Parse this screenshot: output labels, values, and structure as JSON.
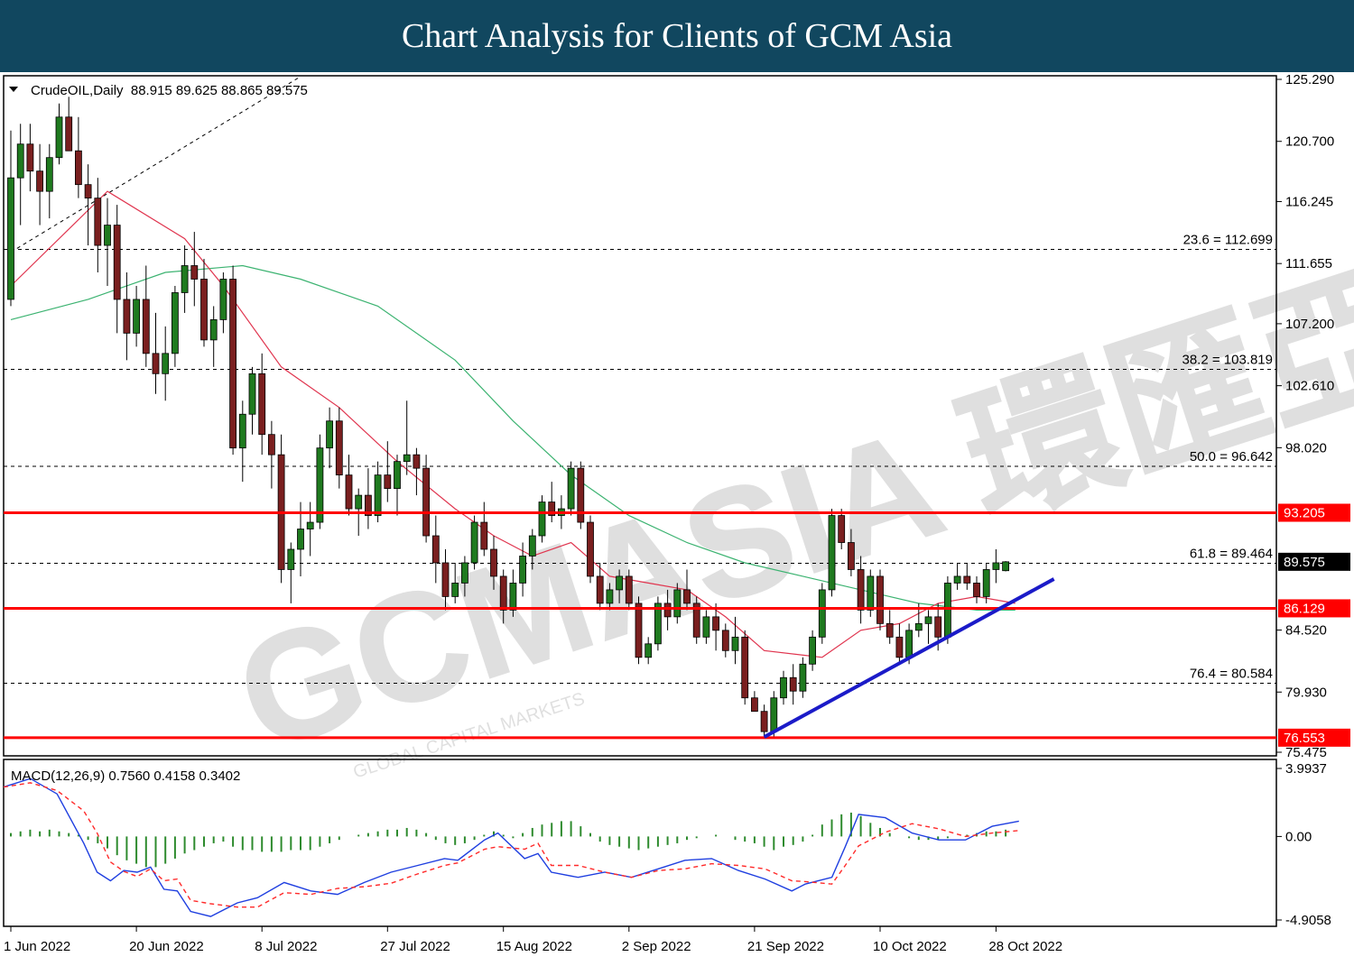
{
  "page_title": "Chart Analysis for Clients of GCM Asia",
  "watermark": "GCMASIA 環匯亞洲",
  "watermark_sub": "GLOBAL CAPITAL MARKETS",
  "chart_data": [
    {
      "type": "candlestick",
      "header": "CrudeOIL,Daily  88.915 89.625 88.865 89.575",
      "symbol": "CrudeOIL",
      "timeframe": "Daily",
      "ohlc_label": "88.915 89.625 88.865 89.575",
      "ylim": [
        75.475,
        125.29
      ],
      "price_ticks": [
        "125.290",
        "120.700",
        "116.245",
        "111.655",
        "107.200",
        "102.610",
        "98.020",
        "84.520",
        "79.930",
        "75.475"
      ],
      "date_labels": [
        "1 Jun 2022",
        "20 Jun 2022",
        "8 Jul 2022",
        "27 Jul 2022",
        "15 Aug 2022",
        "2 Sep 2022",
        "21 Sep 2022",
        "10 Oct 2022",
        "28 Oct 2022"
      ],
      "fibonacci": [
        {
          "label": "23.6 = 112.699",
          "price": 112.699
        },
        {
          "label": "38.2 = 103.819",
          "price": 103.819
        },
        {
          "label": "50.0 = 96.642",
          "price": 96.642
        },
        {
          "label": "61.8 = 89.464",
          "price": 89.464
        },
        {
          "label": "76.4 = 80.584",
          "price": 80.584
        }
      ],
      "sr_levels": [
        {
          "label": "93.205",
          "price": 93.205
        },
        {
          "label": "86.129",
          "price": 86.129
        },
        {
          "label": "76.553",
          "price": 76.553
        }
      ],
      "current_price": {
        "label": "89.575",
        "price": 89.575
      },
      "candles": [
        [
          109.0,
          121.5,
          108.5,
          118.0
        ],
        [
          118.0,
          122.0,
          114.5,
          120.5
        ],
        [
          120.5,
          122.0,
          117.0,
          118.5
        ],
        [
          118.5,
          120.5,
          114.5,
          117.0
        ],
        [
          117.0,
          120.5,
          115.0,
          119.5
        ],
        [
          119.5,
          123.5,
          119.0,
          122.5
        ],
        [
          122.5,
          124.0,
          120.0,
          120.0
        ],
        [
          120.0,
          122.5,
          116.5,
          117.5
        ],
        [
          117.5,
          119.0,
          113.0,
          116.5
        ],
        [
          116.5,
          118.0,
          111.0,
          113.0
        ],
        [
          113.0,
          116.5,
          110.0,
          114.5
        ],
        [
          114.5,
          116.0,
          106.5,
          109.0
        ],
        [
          109.0,
          111.0,
          104.5,
          106.5
        ],
        [
          106.5,
          110.0,
          105.5,
          109.0
        ],
        [
          109.0,
          111.5,
          104.0,
          105.0
        ],
        [
          105.0,
          108.0,
          102.0,
          103.5
        ],
        [
          103.5,
          107.0,
          101.5,
          105.0
        ],
        [
          105.0,
          110.0,
          104.0,
          109.5
        ],
        [
          109.5,
          113.0,
          108.0,
          111.5
        ],
        [
          111.5,
          114.0,
          108.5,
          110.5
        ],
        [
          110.5,
          112.0,
          105.5,
          106.0
        ],
        [
          106.0,
          108.5,
          104.0,
          107.5
        ],
        [
          107.5,
          111.0,
          106.5,
          110.5
        ],
        [
          110.5,
          111.5,
          97.5,
          98.0
        ],
        [
          98.0,
          101.5,
          95.5,
          100.5
        ],
        [
          100.5,
          104.0,
          99.0,
          103.5
        ],
        [
          103.5,
          105.0,
          97.5,
          99.0
        ],
        [
          99.0,
          100.0,
          95.0,
          97.5
        ],
        [
          97.5,
          99.0,
          88.0,
          89.0
        ],
        [
          89.0,
          91.0,
          86.5,
          90.5
        ],
        [
          90.5,
          94.0,
          88.5,
          92.0
        ],
        [
          92.0,
          94.0,
          90.0,
          92.5
        ],
        [
          92.5,
          99.0,
          92.0,
          98.0
        ],
        [
          98.0,
          101.0,
          96.5,
          100.0
        ],
        [
          100.0,
          101.0,
          95.0,
          96.0
        ],
        [
          96.0,
          97.5,
          93.0,
          93.5
        ],
        [
          93.5,
          95.0,
          91.5,
          94.5
        ],
        [
          94.5,
          96.5,
          92.0,
          93.0
        ],
        [
          93.0,
          97.0,
          92.5,
          96.0
        ],
        [
          96.0,
          98.5,
          94.0,
          95.0
        ],
        [
          95.0,
          97.5,
          93.0,
          97.0
        ],
        [
          97.0,
          101.5,
          96.0,
          97.5
        ],
        [
          97.5,
          98.0,
          94.5,
          96.5
        ],
        [
          96.5,
          97.5,
          91.0,
          91.5
        ],
        [
          91.5,
          93.0,
          88.0,
          89.5
        ],
        [
          89.5,
          90.5,
          86.0,
          87.0
        ],
        [
          87.0,
          89.5,
          86.5,
          88.0
        ],
        [
          88.0,
          90.0,
          87.0,
          89.5
        ],
        [
          89.5,
          93.0,
          89.0,
          92.5
        ],
        [
          92.5,
          94.0,
          90.0,
          90.5
        ],
        [
          90.5,
          91.5,
          87.5,
          88.5
        ],
        [
          88.5,
          89.0,
          85.0,
          86.0
        ],
        [
          86.0,
          89.0,
          85.5,
          88.0
        ],
        [
          88.0,
          91.0,
          87.0,
          90.0
        ],
        [
          90.0,
          92.0,
          89.0,
          91.5
        ],
        [
          91.5,
          94.5,
          91.0,
          94.0
        ],
        [
          94.0,
          95.5,
          92.5,
          93.0
        ],
        [
          93.0,
          94.5,
          92.0,
          93.5
        ],
        [
          93.5,
          97.0,
          93.0,
          96.5
        ],
        [
          96.5,
          97.0,
          92.0,
          92.5
        ],
        [
          92.5,
          93.0,
          88.0,
          88.5
        ],
        [
          88.5,
          89.5,
          86.0,
          86.5
        ],
        [
          86.5,
          88.0,
          86.0,
          87.5
        ],
        [
          87.5,
          89.0,
          86.5,
          88.5
        ],
        [
          88.5,
          89.0,
          86.0,
          86.5
        ],
        [
          86.5,
          87.0,
          82.0,
          82.5
        ],
        [
          82.5,
          84.0,
          82.0,
          83.5
        ],
        [
          83.5,
          87.0,
          83.0,
          86.5
        ],
        [
          86.5,
          87.5,
          84.5,
          85.5
        ],
        [
          85.5,
          88.0,
          85.0,
          87.5
        ],
        [
          87.5,
          89.0,
          86.0,
          86.5
        ],
        [
          86.5,
          87.0,
          83.5,
          84.0
        ],
        [
          84.0,
          86.0,
          83.5,
          85.5
        ],
        [
          85.5,
          86.5,
          83.0,
          84.5
        ],
        [
          84.5,
          85.0,
          82.5,
          83.0
        ],
        [
          83.0,
          85.5,
          82.0,
          84.0
        ],
        [
          84.0,
          84.5,
          79.0,
          79.5
        ],
        [
          79.5,
          80.0,
          78.5,
          78.5
        ],
        [
          78.5,
          79.0,
          76.5,
          77.0
        ],
        [
          77.0,
          80.0,
          76.5,
          79.5
        ],
        [
          79.5,
          81.5,
          79.0,
          81.0
        ],
        [
          81.0,
          82.0,
          79.0,
          80.0
        ],
        [
          80.0,
          82.5,
          79.5,
          82.0
        ],
        [
          82.0,
          84.5,
          81.5,
          84.0
        ],
        [
          84.0,
          88.0,
          83.5,
          87.5
        ],
        [
          87.5,
          93.5,
          87.0,
          93.0
        ],
        [
          93.0,
          93.5,
          90.5,
          91.0
        ],
        [
          91.0,
          92.0,
          88.5,
          89.0
        ],
        [
          89.0,
          90.0,
          85.0,
          86.0
        ],
        [
          86.0,
          89.0,
          85.5,
          88.5
        ],
        [
          88.5,
          89.0,
          84.5,
          85.0
        ],
        [
          85.0,
          86.0,
          83.5,
          84.0
        ],
        [
          84.0,
          85.0,
          82.0,
          82.5
        ],
        [
          82.5,
          85.0,
          82.0,
          84.5
        ],
        [
          84.5,
          86.5,
          84.0,
          85.0
        ],
        [
          85.0,
          86.0,
          83.5,
          85.5
        ],
        [
          85.5,
          86.5,
          83.0,
          84.0
        ],
        [
          84.0,
          88.5,
          83.5,
          88.0
        ],
        [
          88.0,
          89.5,
          87.5,
          88.5
        ],
        [
          88.5,
          89.5,
          87.5,
          88.0
        ],
        [
          88.0,
          88.5,
          86.5,
          87.0
        ],
        [
          87.0,
          89.5,
          86.5,
          89.0
        ],
        [
          89.0,
          90.5,
          88.0,
          89.5
        ],
        [
          88.915,
          89.625,
          88.865,
          89.575
        ]
      ],
      "sma_red": [
        [
          0,
          110.0
        ],
        [
          10,
          117.0
        ],
        [
          18,
          113.5
        ],
        [
          22,
          110.0
        ],
        [
          28,
          104.0
        ],
        [
          34,
          101.0
        ],
        [
          40,
          97.0
        ],
        [
          46,
          93.5
        ],
        [
          50,
          91.5
        ],
        [
          54,
          90.0
        ],
        [
          58,
          91.0
        ],
        [
          62,
          88.5
        ],
        [
          66,
          88.0
        ],
        [
          70,
          87.5
        ],
        [
          74,
          85.5
        ],
        [
          78,
          83.0
        ],
        [
          84,
          82.5
        ],
        [
          88,
          84.5
        ],
        [
          92,
          85.0
        ],
        [
          96,
          86.5
        ],
        [
          100,
          87.0
        ],
        [
          104,
          86.5
        ]
      ],
      "sma_green": [
        [
          0,
          107.5
        ],
        [
          8,
          109.0
        ],
        [
          16,
          111.0
        ],
        [
          24,
          111.5
        ],
        [
          30,
          110.5
        ],
        [
          38,
          108.5
        ],
        [
          46,
          104.5
        ],
        [
          52,
          100.0
        ],
        [
          58,
          96.0
        ],
        [
          64,
          93.0
        ],
        [
          70,
          91.0
        ],
        [
          76,
          89.5
        ],
        [
          82,
          88.5
        ],
        [
          88,
          87.5
        ],
        [
          94,
          86.5
        ],
        [
          100,
          86.0
        ],
        [
          104,
          86.0
        ]
      ],
      "trendline": [
        [
          78,
          76.6
        ],
        [
          108,
          88.3
        ]
      ],
      "trendline_dashed": [
        [
          0,
          112.5
        ],
        [
          30,
          125.5
        ]
      ]
    },
    {
      "type": "macd",
      "header": "MACD(12,26,9) 0.7560 0.4158 0.3402",
      "ylim": [
        -4.9058,
        3.9937
      ],
      "ticks": [
        "3.9937",
        "0.00",
        "-4.9058"
      ],
      "histogram": [
        0.2,
        0.3,
        0.4,
        0.3,
        0.4,
        0.3,
        0.2,
        0.1,
        -0.2,
        -0.4,
        -0.7,
        -1.1,
        -1.4,
        -1.6,
        -1.8,
        -1.8,
        -1.6,
        -1.3,
        -1.0,
        -0.8,
        -0.6,
        -0.4,
        -0.3,
        -0.6,
        -0.8,
        -0.8,
        -0.9,
        -0.9,
        -0.9,
        -0.8,
        -0.8,
        -0.8,
        -0.6,
        -0.4,
        -0.2,
        0.0,
        0.1,
        0.2,
        0.3,
        0.4,
        0.4,
        0.5,
        0.4,
        0.2,
        -0.2,
        -0.4,
        -0.5,
        -0.4,
        -0.2,
        0.1,
        0.3,
        0.1,
        -0.1,
        0.2,
        0.5,
        0.7,
        0.8,
        0.9,
        0.9,
        0.6,
        0.2,
        -0.3,
        -0.5,
        -0.6,
        -0.7,
        -0.8,
        -0.7,
        -0.6,
        -0.5,
        -0.4,
        -0.2,
        -0.1,
        0.0,
        0.1,
        0.0,
        -0.2,
        -0.3,
        -0.4,
        -0.6,
        -0.8,
        -0.6,
        -0.5,
        -0.3,
        0.1,
        0.7,
        1.0,
        1.3,
        1.4,
        1.2,
        0.8,
        0.5,
        0.2,
        0.0,
        -0.1,
        -0.2,
        -0.2,
        -0.2,
        -0.1,
        0.0,
        0.1,
        0.2,
        0.3,
        0.3,
        0.4
      ],
      "macd_line": [
        [
          0,
          2.9
        ],
        [
          4,
          3.4
        ],
        [
          8,
          2.5
        ],
        [
          12,
          -0.4
        ],
        [
          14,
          -2.1
        ],
        [
          16,
          -2.6
        ],
        [
          18,
          -2.0
        ],
        [
          20,
          -2.1
        ],
        [
          22,
          -1.8
        ],
        [
          24,
          -3.1
        ],
        [
          26,
          -3.2
        ],
        [
          28,
          -4.4
        ],
        [
          31,
          -4.7
        ],
        [
          35,
          -3.9
        ],
        [
          38,
          -3.6
        ],
        [
          42,
          -2.7
        ],
        [
          46,
          -3.2
        ],
        [
          50,
          -3.4
        ],
        [
          54,
          -2.7
        ],
        [
          58,
          -2.1
        ],
        [
          62,
          -1.7
        ],
        [
          66,
          -1.3
        ],
        [
          68,
          -1.4
        ],
        [
          72,
          -0.2
        ],
        [
          74,
          0.2
        ],
        [
          78,
          -1.3
        ],
        [
          80,
          -1.0
        ],
        [
          82,
          -2.1
        ],
        [
          86,
          -2.4
        ],
        [
          90,
          -2.1
        ],
        [
          94,
          -2.4
        ],
        [
          98,
          -1.9
        ],
        [
          102,
          -1.4
        ],
        [
          106,
          -1.3
        ],
        [
          110,
          -2.0
        ],
        [
          114,
          -2.5
        ],
        [
          118,
          -3.2
        ],
        [
          120,
          -2.8
        ],
        [
          124,
          -2.4
        ],
        [
          126,
          -0.6
        ],
        [
          128,
          1.3
        ],
        [
          132,
          1.1
        ],
        [
          136,
          0.2
        ],
        [
          140,
          -0.2
        ],
        [
          144,
          -0.2
        ],
        [
          148,
          0.6
        ],
        [
          152,
          0.9
        ]
      ]
    }
  ],
  "colors": {
    "title_bg": "#11475f",
    "bull": "#1f7a1f",
    "bear": "#7a1f1f",
    "sr": "#ff0000",
    "sma_red": "#e0354f",
    "sma_green": "#3cb371",
    "trend": "#1b1bc8",
    "macd_line": "#1f3fe0",
    "signal_line": "#ff2a2a",
    "hist": "#2e8b2e"
  }
}
